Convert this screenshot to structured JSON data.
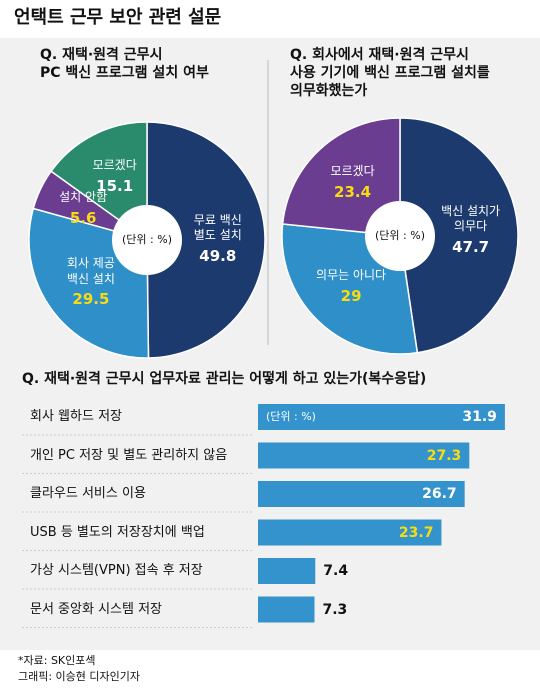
{
  "title": "언택트 근무 보안 관련 설문",
  "chart_data": [
    {
      "type": "pie",
      "title": "Q. 재택·원격 근무시\nPC 백신 프로그램 설치 여부",
      "unit": "(단위 : %)",
      "categories": [
        "무료 백신\n별도 설치",
        "회사 제공\n백신 설치",
        "설치 안함",
        "모르겠다"
      ],
      "values": [
        49.8,
        29.5,
        5.6,
        15.1
      ],
      "colors": [
        "#1d3a6e",
        "#2f8fc8",
        "#6b3d90",
        "#2a8a6c"
      ],
      "value_label_colors": [
        "#ffffff",
        "#f7dc12",
        "#f7dc12",
        "#ffffff"
      ]
    },
    {
      "type": "pie",
      "title": "Q. 회사에서 재택·원격 근무시\n사용 기기에 백신 프로그램 설치를\n의무화했는가",
      "unit": "(단위 : %)",
      "categories": [
        "백신 설치가\n의무다",
        "의무는 아니다",
        "모르겠다"
      ],
      "values": [
        47.7,
        29,
        23.4
      ],
      "colors": [
        "#1d3a6e",
        "#2f8fc8",
        "#6b3d90"
      ],
      "value_label_colors": [
        "#ffffff",
        "#f7dc12",
        "#f7dc12"
      ]
    },
    {
      "type": "bar",
      "orientation": "horizontal",
      "title": "Q. 재택·원격 근무시 업무자료 관리는 어떻게 하고 있는가(복수응답)",
      "unit": "(단위 : %)",
      "categories": [
        "회사 웹하드 저장",
        "개인 PC 저장 및 별도 관리하지 않음",
        "클라우드 서비스 이용",
        "USB 등 별도의 저장장치에 백업",
        "가상 시스템(VPN) 접속 후 저장",
        "문서 중앙화 시스템 저장"
      ],
      "values": [
        31.9,
        27.3,
        26.7,
        23.7,
        7.4,
        7.3
      ],
      "color": "#3493cc",
      "value_label_colors": [
        "#ffffff",
        "#f7dc12",
        "#ffffff",
        "#f7dc12",
        "#111111",
        "#111111"
      ]
    }
  ],
  "notes": [
    "*자료: SK인포섹",
    "그래픽: 이승현 디자인기자"
  ]
}
